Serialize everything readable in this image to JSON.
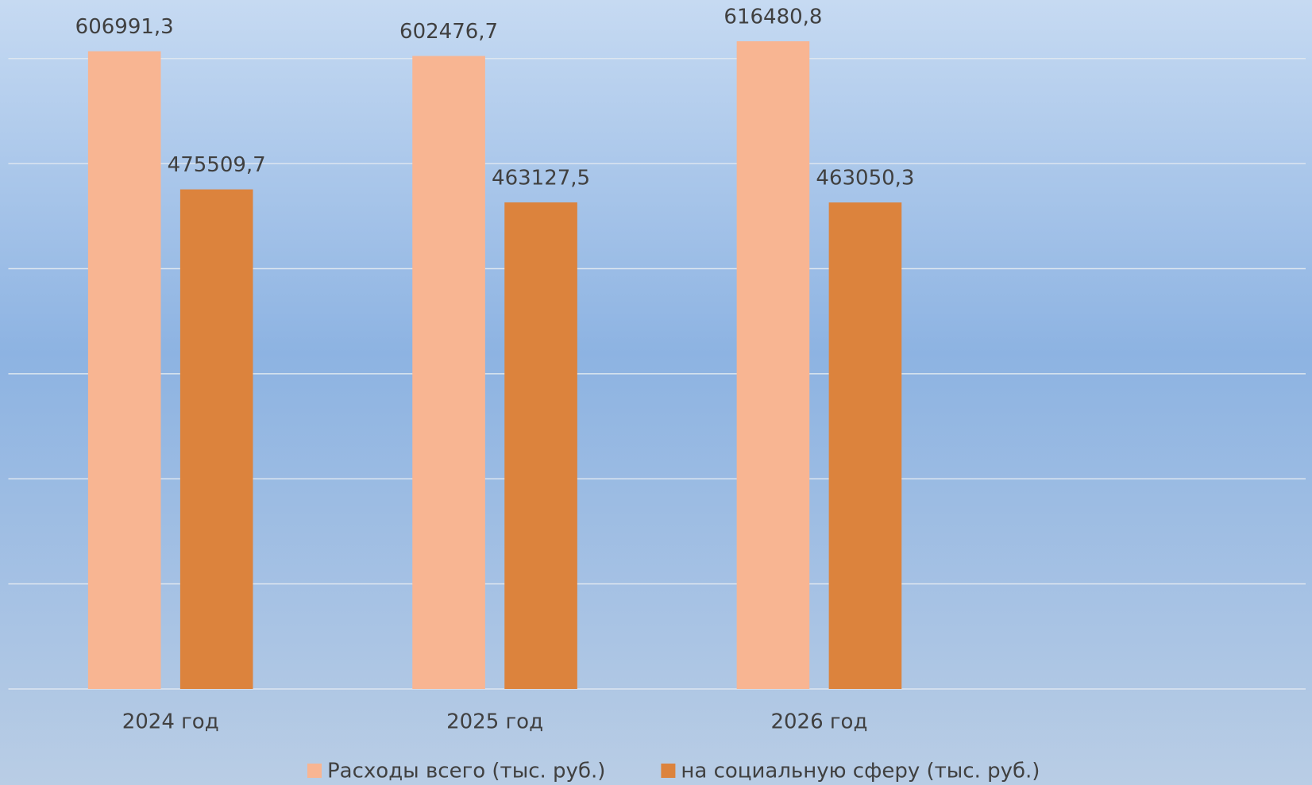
{
  "chart_data": {
    "type": "bar",
    "categories": [
      "2024 год",
      "2025 год",
      "2026 год",
      null
    ],
    "series": [
      {
        "name": "Расходы всего (тыс. руб.)",
        "color": "#f8b592",
        "values": [
          606991.3,
          602476.7,
          616480.8,
          null
        ],
        "value_labels": [
          "606991,3",
          "602476,7",
          "616480,8",
          null
        ]
      },
      {
        "name": "на социальную сферу (тыс. руб.)",
        "color": "#dc833d",
        "values": [
          475509.7,
          463127.5,
          463050.3,
          null
        ],
        "value_labels": [
          "475509,7",
          "463127,5",
          "463050,3",
          null
        ]
      }
    ],
    "ylim": [
      0,
      600000
    ],
    "yticks": [
      0,
      100000,
      200000,
      300000,
      400000,
      500000,
      600000
    ],
    "grid": true,
    "legend": "bottom"
  }
}
